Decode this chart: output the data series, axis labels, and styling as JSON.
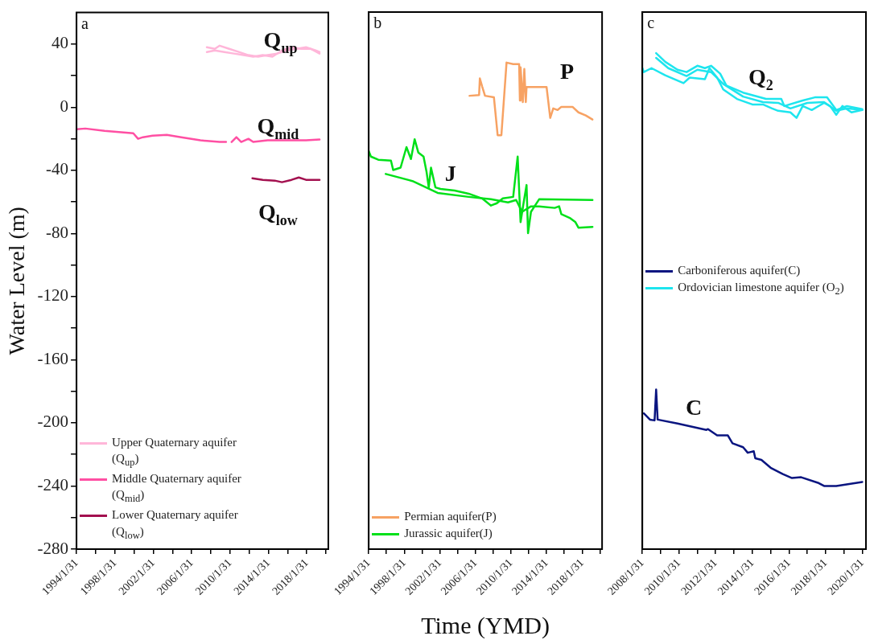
{
  "chart_data": [
    {
      "type": "line",
      "ylabel": "Water Level (m)",
      "grid": false,
      "legend": "bottom left",
      "marker": "none",
      "annotations": [
        "a",
        "Q$_{up}$",
        "Q$_{mid}$",
        "Q$_{low}$"
      ],
      "xlim": [
        "1994-01-31",
        "2020-04-30"
      ],
      "xticks": [
        {
          "value": "1994-01-31",
          "label": "1994/1/31"
        },
        {
          "value": "1996-01-31",
          "label": null
        },
        {
          "value": "1998-01-31",
          "label": "1998/1/31"
        },
        {
          "value": "2000-01-31",
          "label": null
        },
        {
          "value": "2002-01-31",
          "label": "2002/1/31"
        },
        {
          "value": "2004-01-31",
          "label": null
        },
        {
          "value": "2006-01-31",
          "label": "2006/1/31"
        },
        {
          "value": "2008-01-31",
          "label": null
        },
        {
          "value": "2010-01-31",
          "label": "2010/1/31"
        },
        {
          "value": "2012-01-31",
          "label": null
        },
        {
          "value": "2014-01-31",
          "label": "2014/1/31"
        },
        {
          "value": "2016-01-31",
          "label": null
        },
        {
          "value": "2018-01-31",
          "label": "2018/1/31"
        },
        {
          "value": "2020-01-31",
          "label": null
        }
      ],
      "ylim": [
        -280,
        60
      ],
      "yticks": [
        -280,
        {
          "value": -260,
          "label": null
        },
        -240,
        {
          "value": -220,
          "label": null
        },
        -200,
        {
          "value": -180,
          "label": null
        },
        -160,
        {
          "value": -140,
          "label": null
        },
        -120,
        {
          "value": -100,
          "label": null
        },
        -80,
        {
          "value": -60,
          "label": null
        },
        -40,
        {
          "value": -20,
          "label": null
        },
        0,
        {
          "value": 20,
          "label": null
        },
        40
      ],
      "series": [
        {
          "name": "Upper Quaternary aquifer (Q$_{up}$)",
          "color": "#ffb6d9",
          "x": [
            "2007-09",
            "2008-07",
            "2009-01",
            "2010-01",
            "2011-01",
            "2012-01",
            "2013-01",
            "2014-01",
            "2015-01",
            "2016-01",
            "2017-01",
            "2018-01",
            "2019-01",
            "2019-06"
          ],
          "values": [
            38,
            37,
            39,
            37,
            35,
            33,
            32,
            33,
            34,
            36,
            37,
            38,
            36,
            35
          ]
        },
        {
          "color": "#ffb6d9",
          "x": [
            "2007-09",
            "2008-07",
            "2009-07",
            "2010-07",
            "2011-07",
            "2012-07",
            "2013-07",
            "2014-07",
            "2015-07",
            "2016-07",
            "2017-07",
            "2018-07",
            "2019-06"
          ],
          "values": [
            35,
            36,
            35,
            34,
            33,
            32,
            33,
            32,
            36,
            38,
            37,
            37,
            34
          ]
        },
        {
          "name": "Middle Quaternary aquifer (Q$_{mid}$)",
          "color": "#ff4fa3",
          "x": [
            "1994-02",
            "1995-01",
            "1997-01",
            "1999-01",
            "2000-01",
            "2000-07",
            "2001-01",
            "2002-01",
            "2003-07",
            "2005-01",
            "2007-01",
            "2009-01",
            "2009-09",
            "2010-01",
            "2010-04",
            "2010-10",
            "2011-04",
            "2012-01",
            "2012-07",
            "2014-01",
            "2016-01",
            "2018-01",
            "2019-06"
          ],
          "values": [
            -14,
            -13.5,
            -15,
            -16,
            -16.5,
            -20,
            -19,
            -18,
            -17.5,
            -19,
            -21,
            -22,
            -22,
            null,
            -22,
            -19,
            -22,
            -20,
            -22,
            -21,
            -21,
            -21,
            -20.5
          ]
        },
        {
          "name": "Lower Quaternary aquifer (Q$_{low}$)",
          "color": "#a3104f",
          "x": [
            "2012-06",
            "2013-07",
            "2014-10",
            "2015-07",
            "2016-07",
            "2017-04",
            "2018-01",
            "2019-06"
          ],
          "values": [
            -45,
            -46,
            -46.5,
            -47.5,
            -46,
            -44.5,
            -46,
            -46
          ]
        }
      ]
    },
    {
      "type": "line",
      "xlabel": "Time (YMD)",
      "grid": false,
      "legend": "bottom left",
      "marker": "none",
      "tick_labels": "x",
      "annotations": [
        "b",
        "P",
        "J"
      ],
      "xlim": [
        "1994-01-31",
        "2020-04-30"
      ],
      "xticks": [
        {
          "value": "1994-01-31",
          "label": "1994/1/31"
        },
        {
          "value": "1996-01-31",
          "label": null
        },
        {
          "value": "1998-01-31",
          "label": "1998/1/31"
        },
        {
          "value": "2000-01-31",
          "label": null
        },
        {
          "value": "2002-01-31",
          "label": "2002/1/31"
        },
        {
          "value": "2004-01-31",
          "label": null
        },
        {
          "value": "2006-01-31",
          "label": "2006/1/31"
        },
        {
          "value": "2008-01-31",
          "label": null
        },
        {
          "value": "2010-01-31",
          "label": "2010/1/31"
        },
        {
          "value": "2012-01-31",
          "label": null
        },
        {
          "value": "2014-01-31",
          "label": "2014/1/31"
        },
        {
          "value": "2016-01-31",
          "label": null
        },
        {
          "value": "2018-01-31",
          "label": "2018/1/31"
        },
        {
          "value": "2020-01-31",
          "label": null
        }
      ],
      "ylim": [
        -280,
        60
      ],
      "series": [
        {
          "name": "Permian aquifer(P)",
          "color": "#f7a263",
          "x": [
            "2005-06",
            "2006-07",
            "2006-08",
            "2006-11",
            "2007-03",
            "2008-03",
            "2008-05",
            "2008-08",
            "2009-01",
            "2009-08",
            "2010-05",
            "2011-01",
            "2011-02",
            "2011-03",
            "2011-06",
            "2011-08",
            "2011-10",
            "2011-11",
            "2014-02",
            "2014-07",
            "2014-11",
            "2015-05",
            "2015-10",
            "2017-01",
            "2017-09",
            "2018-07",
            "2019-04"
          ],
          "values": [
            7,
            7.5,
            18,
            13,
            7,
            6,
            -3.5,
            -18,
            -18,
            28,
            27,
            27,
            4,
            25,
            3,
            24,
            3,
            12.5,
            12.5,
            -7,
            -1,
            -2,
            0,
            0,
            -3.5,
            -5.5,
            -8
          ]
        },
        {
          "name": "Jurassic aquifer(J)",
          "color": "#00e019",
          "x": [
            "1994-02",
            "1994-05",
            "1995-03",
            "1996-08",
            "1996-11",
            "1997-09",
            "1998-05",
            "1998-11",
            "1999-04",
            "1999-09",
            "2000-04",
            "2000-08",
            "2000-11",
            "2001-02",
            "2001-08",
            "2002-03",
            "2003-10",
            "2005-05",
            "2006-11",
            "2007-11",
            "2008-07",
            "2009-03",
            "2010-05",
            "2010-11",
            "2011-03",
            "2011-07",
            "2011-11",
            "2012-01",
            "2012-05",
            "2013-04",
            "2019-04"
          ],
          "values": [
            -28,
            -31.5,
            -33.5,
            -34,
            -40,
            -38.5,
            -25.5,
            -33,
            -20.5,
            -29,
            -31.5,
            -41,
            -51,
            -38.5,
            -51,
            -52,
            -53,
            -55,
            -58,
            -62.5,
            -61,
            -58,
            -57,
            -31.5,
            -73,
            -61,
            -49.5,
            -80,
            -66.5,
            -58.5,
            -59
          ]
        },
        {
          "color": "#00e019",
          "x": [
            "1996-01",
            "1999-01",
            "2001-11",
            "2005-05",
            "2007-11",
            "2009-10",
            "2010-09",
            "2011-05",
            "2012-05",
            "2013-04",
            "2015-01",
            "2015-07",
            "2015-10",
            "2016-10",
            "2017-05",
            "2017-09",
            "2019-04"
          ],
          "values": [
            -42.5,
            -47,
            -54.5,
            -57,
            -58.5,
            -60.5,
            -59,
            -66.5,
            -63,
            -63,
            -64,
            -63,
            -68,
            -70.5,
            -73,
            -76.5,
            -76
          ]
        }
      ]
    },
    {
      "type": "line",
      "grid": false,
      "legend": "left",
      "marker": "none",
      "tick_labels": "x",
      "annotations": [
        "c",
        "Q$_{2}$",
        "C"
      ],
      "xlim": [
        "2008-01-31",
        "2020-04-15"
      ],
      "xticks": [
        {
          "value": "2008-01-31",
          "label": "2008/1/31"
        },
        {
          "value": "2009-01-31",
          "label": null
        },
        {
          "value": "2010-01-31",
          "label": "2010/1/31"
        },
        {
          "value": "2011-01-31",
          "label": null
        },
        {
          "value": "2012-01-31",
          "label": "2012/1/31"
        },
        {
          "value": "2013-01-31",
          "label": null
        },
        {
          "value": "2014-01-31",
          "label": "2014/1/31"
        },
        {
          "value": "2015-01-31",
          "label": null
        },
        {
          "value": "2016-01-31",
          "label": "2016/1/31"
        },
        {
          "value": "2017-01-31",
          "label": null
        },
        {
          "value": "2018-01-31",
          "label": "2018/1/31"
        },
        {
          "value": "2019-01-31",
          "label": null
        },
        {
          "value": "2020-01-31",
          "label": "2020/1/31"
        }
      ],
      "ylim": [
        -280,
        60
      ],
      "series": [
        {
          "name": "Carboniferous aquifer(C)",
          "color": "#0a1580",
          "x": [
            "2008-03",
            "2008-07",
            "2008-10",
            "2008-11",
            "2008-12",
            "2010-01",
            "2011-08",
            "2011-09",
            "2012-03",
            "2012-10",
            "2013-01",
            "2013-08",
            "2013-11",
            "2014-03",
            "2014-04",
            "2014-08",
            "2015-02",
            "2015-10",
            "2016-04",
            "2016-10",
            "2017-09",
            "2018-01",
            "2018-09",
            "2020-02"
          ],
          "values": [
            -194,
            -198,
            -198.5,
            -179,
            -198,
            -200.5,
            -204.5,
            -204,
            -208,
            -208,
            -213,
            -215.5,
            -219,
            -218,
            -222.5,
            -223.5,
            -228.5,
            -232.5,
            -235,
            -234.5,
            -238,
            -240,
            -240,
            -237.5
          ]
        },
        {
          "name": "Ordovician limestone aquifer (O$_{2}$)",
          "color": "#1ee5ee",
          "x": [
            "2008-02",
            "2008-03",
            "2008-08",
            "2009-05",
            "2010-05",
            "2010-09",
            "2011-07",
            "2011-10",
            "2012-03",
            "2012-07",
            "2013-04",
            "2014-02",
            "2014-09",
            "2015-03",
            "2015-07",
            "2016-03",
            "2016-07",
            "2016-11",
            "2017-05",
            "2018-01",
            "2018-05",
            "2018-09",
            "2019-01",
            "2019-07",
            "2020-02"
          ],
          "values": [
            24.5,
            22,
            24.5,
            20,
            15,
            18.5,
            17.5,
            24.5,
            18.5,
            11,
            5,
            1.5,
            1.5,
            -1,
            -2.5,
            -3.5,
            -7,
            0.5,
            -2,
            2.5,
            0.5,
            -5,
            0.5,
            -3.5,
            -2
          ]
        },
        {
          "color": "#1ee5ee",
          "x": [
            "2008-11",
            "2009-05",
            "2010-01",
            "2010-07",
            "2011-02",
            "2011-07",
            "2011-11",
            "2012-05",
            "2012-09",
            "2013-08",
            "2014-11",
            "2015-09",
            "2015-11",
            "2016-11",
            "2017-07",
            "2018-03",
            "2018-09",
            "2019-04",
            "2020-02"
          ],
          "values": [
            34,
            28.5,
            23.5,
            22,
            26,
            24.5,
            26,
            21,
            13.5,
            9,
            5,
            5,
            0.5,
            4,
            6,
            6,
            -2,
            0.5,
            -1.5
          ]
        },
        {
          "color": "#1ee5ee",
          "x": [
            "2008-11",
            "2009-07",
            "2010-07",
            "2011-02",
            "2011-11",
            "2012-07",
            "2013-08",
            "2014-09",
            "2015-07",
            "2016-03",
            "2017-02",
            "2018-01",
            "2018-09",
            "2019-04",
            "2020-02"
          ],
          "values": [
            31,
            24.5,
            19.5,
            23.5,
            22,
            14.5,
            6.5,
            3,
            2.5,
            -1,
            2.5,
            3,
            -2.5,
            -1,
            -2
          ]
        }
      ]
    }
  ]
}
